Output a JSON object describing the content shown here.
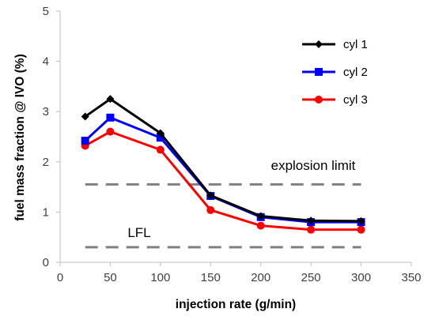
{
  "chart_data": {
    "type": "line",
    "xlabel": "injection rate (g/min)",
    "ylabel": "fuel mass fraction @ IVO (%)",
    "xlim": [
      0,
      350
    ],
    "ylim": [
      0,
      5
    ],
    "x_ticks": [
      0,
      50,
      100,
      150,
      200,
      250,
      300,
      350
    ],
    "y_ticks": [
      0,
      1,
      2,
      3,
      4,
      5
    ],
    "x": [
      25,
      50,
      100,
      150,
      200,
      250,
      300
    ],
    "grid": false,
    "legend_position": "top-right",
    "series": [
      {
        "name": "cyl 1",
        "color": "#000000",
        "marker": "diamond",
        "values": [
          2.9,
          3.25,
          2.57,
          1.33,
          0.92,
          0.83,
          0.82
        ]
      },
      {
        "name": "cyl 2",
        "color": "#0000ff",
        "marker": "square",
        "values": [
          2.42,
          2.88,
          2.48,
          1.32,
          0.9,
          0.8,
          0.8
        ]
      },
      {
        "name": "cyl 3",
        "color": "#ff0000",
        "marker": "circle",
        "values": [
          2.32,
          2.6,
          2.24,
          1.04,
          0.73,
          0.65,
          0.65
        ]
      }
    ],
    "reference_lines": [
      {
        "label": "explosion limit",
        "y": 1.55,
        "x_range": [
          25,
          300
        ],
        "color": "#808080",
        "style": "dashed"
      },
      {
        "label": "LFL",
        "y": 0.3,
        "x_range": [
          25,
          300
        ],
        "color": "#808080",
        "style": "dashed"
      }
    ]
  }
}
